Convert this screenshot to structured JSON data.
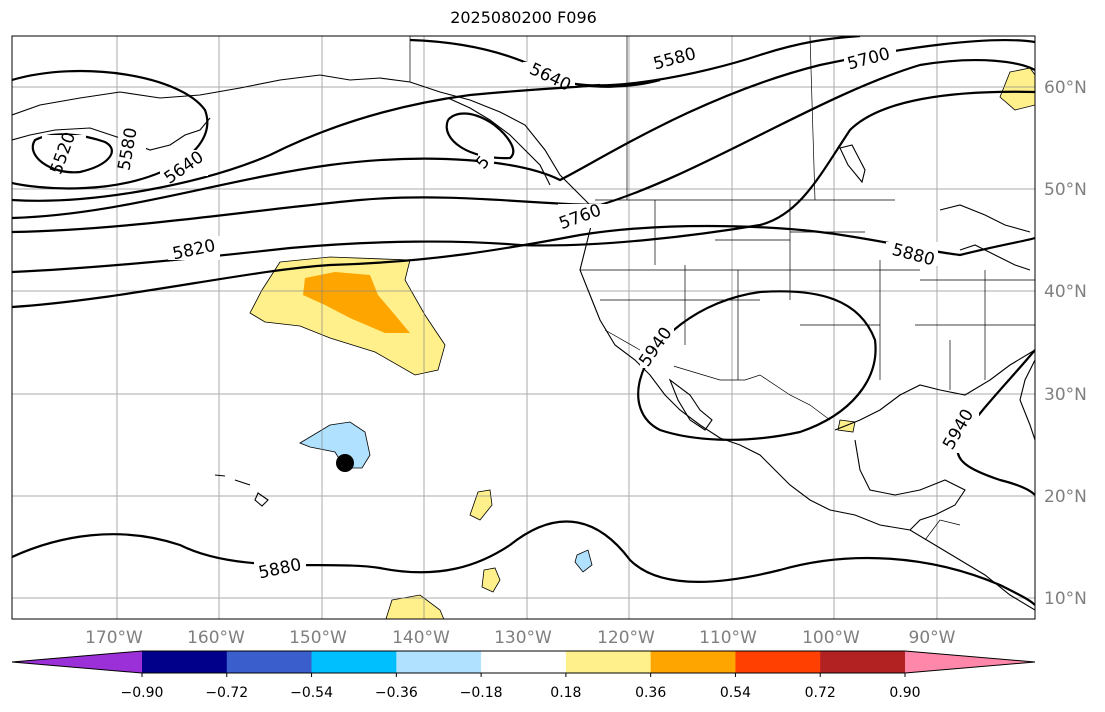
{
  "title": "2025080200 F096",
  "lat_labels": [
    "60°N",
    "50°N",
    "40°N",
    "30°N",
    "20°N",
    "10°N"
  ],
  "lon_labels": [
    "170°W",
    "160°W",
    "150°W",
    "140°W",
    "130°W",
    "120°W",
    "110°W",
    "100°W",
    "90°W"
  ],
  "contour_labels": [
    "5520",
    "5580",
    "5640",
    "5640",
    "5580",
    "5700",
    "5760",
    "5820",
    "5880",
    "5940",
    "5940",
    "5880",
    "5"
  ],
  "colorbar": {
    "colors": [
      "#9b30d9",
      "#00008b",
      "#3a5fcd",
      "#00bfff",
      "#b0e2ff",
      "#ffffff",
      "#fff08c",
      "#ffa500",
      "#ff4000",
      "#b22222",
      "#ff88aa"
    ],
    "tick_labels": [
      "−0.90",
      "−0.72",
      "−0.54",
      "−0.36",
      "−0.18",
      "0.18",
      "0.36",
      "0.54",
      "0.72",
      "0.90"
    ]
  },
  "marker": "storm-center-dot"
}
